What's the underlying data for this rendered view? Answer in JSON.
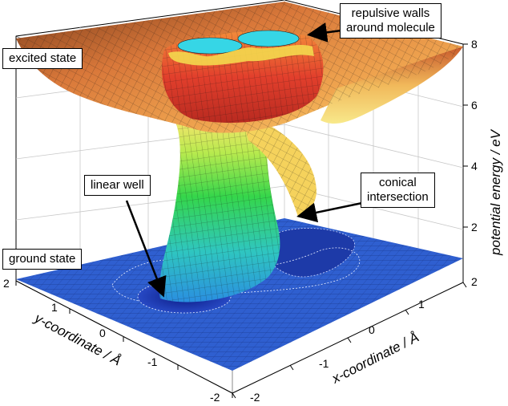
{
  "labels": {
    "excited_state": "excited state",
    "repulsive_walls_line1": "repulsive walls",
    "repulsive_walls_line2": "around molecule",
    "linear_well": "linear well",
    "conical_line1": "conical",
    "conical_line2": "intersection",
    "ground_state": "ground state"
  },
  "axes": {
    "z_title": "potential energy  /  eV",
    "x_title": "x-coordinate  /  Å",
    "y_title": "y-coordinate  /  Å",
    "z_ticks": [
      "2",
      "4",
      "6",
      "8"
    ],
    "x_ticks": [
      "-2",
      "-1",
      "0",
      "1",
      "2"
    ],
    "y_ticks": [
      "2",
      "1",
      "0",
      "-1",
      "-2"
    ]
  },
  "colors": {
    "ground_blue": "#2f5fd0",
    "mesh_line": "#1a1a1a",
    "well_dark": "#12239a",
    "cyan": "#36d6e6",
    "green": "#3fdc4a",
    "yellow": "#f7e36a",
    "orange": "#e88a32",
    "red": "#d8382a",
    "dark_red": "#7a2a16"
  }
}
